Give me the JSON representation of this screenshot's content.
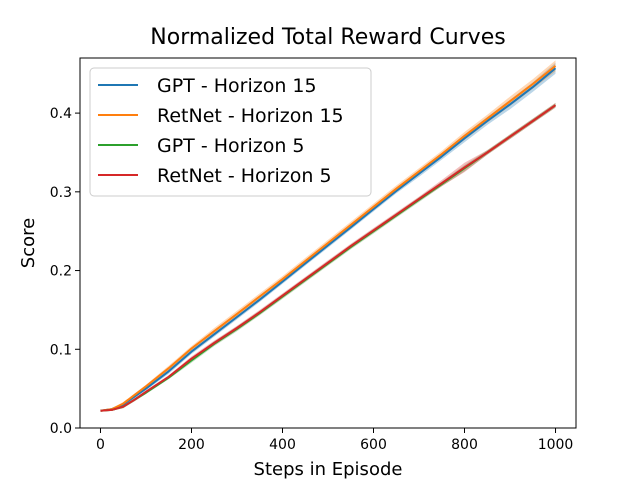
{
  "chart_data": {
    "type": "line",
    "title": "Normalized Total Reward Curves",
    "xlabel": "Steps in Episode",
    "ylabel": "Score",
    "xlim": [
      -45,
      1045
    ],
    "ylim": [
      0.0,
      0.47
    ],
    "xticks": [
      0,
      200,
      400,
      600,
      800,
      1000
    ],
    "yticks": [
      0.0,
      0.1,
      0.2,
      0.3,
      0.4
    ],
    "xtick_labels": [
      "0",
      "200",
      "400",
      "600",
      "800",
      "1000"
    ],
    "ytick_labels": [
      "0.0",
      "0.1",
      "0.2",
      "0.3",
      "0.4"
    ],
    "grid": false,
    "legend_position": "top-left",
    "x": [
      0,
      25,
      50,
      75,
      100,
      150,
      200,
      250,
      300,
      350,
      400,
      450,
      500,
      550,
      600,
      650,
      700,
      750,
      800,
      850,
      900,
      950,
      1000
    ],
    "series": [
      {
        "name": "GPT - Horizon 15",
        "color": "#1f77b4",
        "values": [
          0.022,
          0.024,
          0.03,
          0.04,
          0.05,
          0.072,
          0.097,
          0.119,
          0.141,
          0.163,
          0.186,
          0.209,
          0.232,
          0.255,
          0.278,
          0.301,
          0.323,
          0.345,
          0.368,
          0.39,
          0.411,
          0.433,
          0.457
        ],
        "band": [
          0.001,
          0.001,
          0.002,
          0.002,
          0.002,
          0.003,
          0.003,
          0.003,
          0.003,
          0.003,
          0.003,
          0.003,
          0.003,
          0.003,
          0.003,
          0.003,
          0.004,
          0.004,
          0.005,
          0.005,
          0.006,
          0.006,
          0.007
        ]
      },
      {
        "name": "RetNet - Horizon 15",
        "color": "#ff7f0e",
        "values": [
          0.022,
          0.024,
          0.031,
          0.042,
          0.053,
          0.076,
          0.101,
          0.123,
          0.145,
          0.167,
          0.189,
          0.212,
          0.235,
          0.258,
          0.281,
          0.304,
          0.326,
          0.348,
          0.371,
          0.393,
          0.415,
          0.437,
          0.46
        ],
        "band": [
          0.001,
          0.001,
          0.002,
          0.002,
          0.002,
          0.003,
          0.003,
          0.004,
          0.004,
          0.004,
          0.004,
          0.004,
          0.004,
          0.004,
          0.004,
          0.004,
          0.004,
          0.004,
          0.005,
          0.005,
          0.006,
          0.006,
          0.007
        ]
      },
      {
        "name": "GPT - Horizon 5",
        "color": "#2ca02c",
        "values": [
          0.022,
          0.023,
          0.027,
          0.036,
          0.045,
          0.064,
          0.086,
          0.107,
          0.126,
          0.146,
          0.167,
          0.188,
          0.209,
          0.23,
          0.25,
          0.27,
          0.29,
          0.31,
          0.33,
          0.35,
          0.37,
          0.39,
          0.41
        ],
        "band": [
          0.001,
          0.001,
          0.002,
          0.002,
          0.002,
          0.002,
          0.003,
          0.003,
          0.003,
          0.003,
          0.003,
          0.003,
          0.003,
          0.003,
          0.003,
          0.003,
          0.003,
          0.003,
          0.004,
          0.003,
          0.003,
          0.003,
          0.003
        ]
      },
      {
        "name": "RetNet - Horizon 5",
        "color": "#d62728",
        "values": [
          0.022,
          0.023,
          0.027,
          0.036,
          0.046,
          0.065,
          0.088,
          0.108,
          0.127,
          0.147,
          0.168,
          0.189,
          0.21,
          0.231,
          0.251,
          0.271,
          0.291,
          0.311,
          0.331,
          0.35,
          0.37,
          0.39,
          0.41
        ],
        "band": [
          0.001,
          0.001,
          0.002,
          0.002,
          0.002,
          0.002,
          0.003,
          0.003,
          0.003,
          0.003,
          0.003,
          0.003,
          0.003,
          0.003,
          0.003,
          0.003,
          0.003,
          0.004,
          0.006,
          0.003,
          0.003,
          0.003,
          0.003
        ]
      }
    ]
  }
}
